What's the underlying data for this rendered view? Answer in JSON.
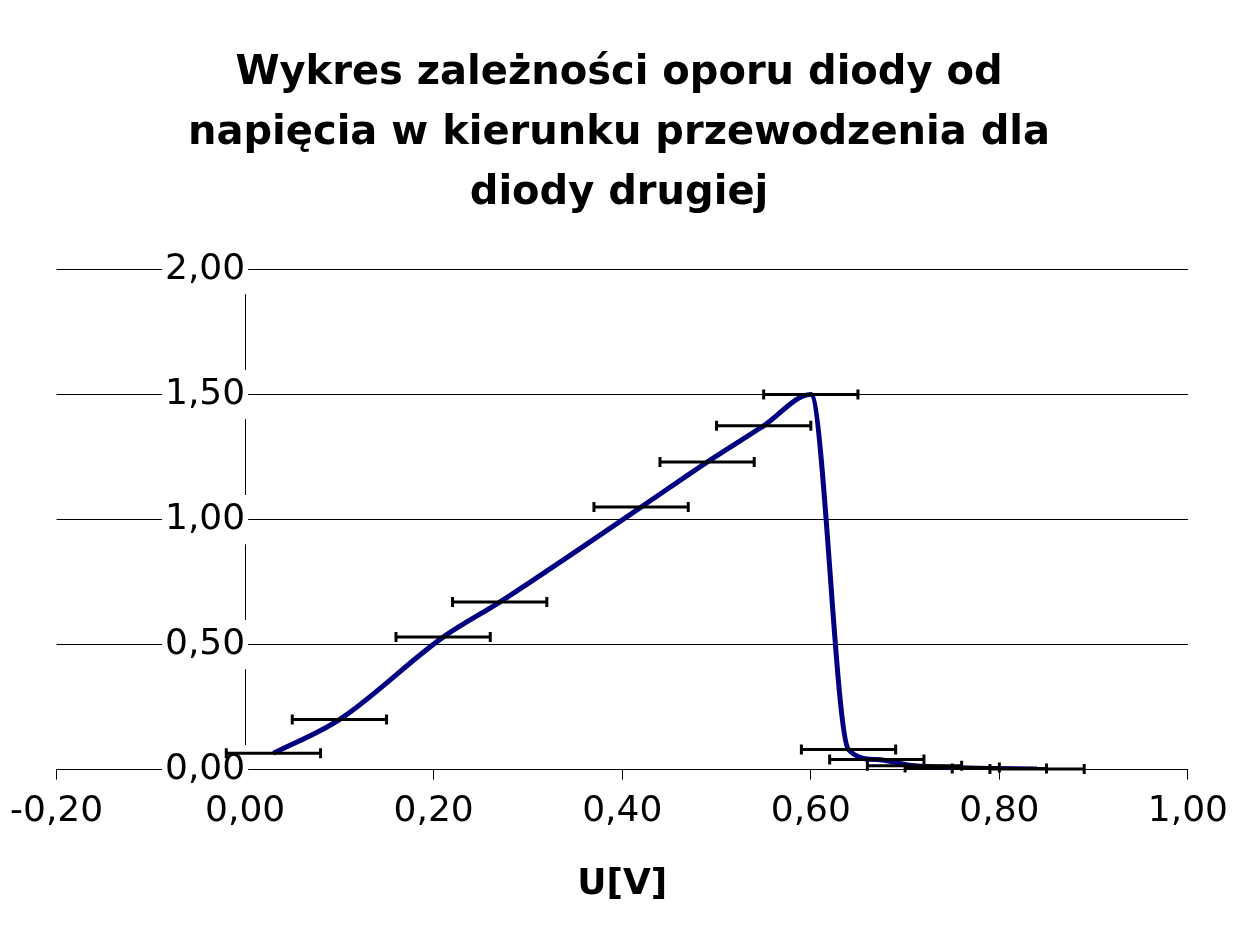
{
  "chart_data": {
    "type": "line",
    "title": "Wykres zależności oporu diody od napięcia w kierunku przewodzenia dla diody drugiej",
    "xlabel": "U[V]",
    "x": [
      0.03,
      0.1,
      0.21,
      0.27,
      0.42,
      0.49,
      0.55,
      0.6,
      0.64,
      0.67,
      0.71,
      0.75,
      0.8,
      0.84
    ],
    "series": [
      {
        "color": "#000080",
        "values": [
          0.065,
          0.2,
          0.53,
          0.67,
          1.05,
          1.23,
          1.375,
          1.5,
          0.08,
          0.04,
          0.015,
          0.008,
          0.004,
          0.002
        ],
        "xerrors": [
          0.05,
          0.05,
          0.05,
          0.05,
          0.05,
          0.05,
          0.05,
          0.05,
          0.05,
          0.05,
          0.05,
          0.05,
          0.05,
          0.05
        ]
      }
    ],
    "xlim": [
      -0.2,
      1.0
    ],
    "xticks": [
      {
        "value": -0.2,
        "label": "-0,20"
      },
      {
        "value": 0,
        "label": "0,00"
      },
      {
        "value": 0.2,
        "label": "0,20"
      },
      {
        "value": 0.4,
        "label": "0,40"
      },
      {
        "value": 0.6,
        "label": "0,60"
      },
      {
        "value": 0.8,
        "label": "0,80"
      },
      {
        "value": 1.0,
        "label": "1,00"
      }
    ],
    "ylim": [
      0,
      2
    ],
    "yticks": [
      {
        "value": 0,
        "label": "0,00"
      },
      {
        "value": 0.5,
        "label": "0,50"
      },
      {
        "value": 1,
        "label": "1,00"
      },
      {
        "value": 1.5,
        "label": "1,50"
      },
      {
        "value": 2,
        "label": "2,00"
      }
    ],
    "grid": "y",
    "legend": false,
    "marker": "none",
    "line_style": "solid"
  }
}
